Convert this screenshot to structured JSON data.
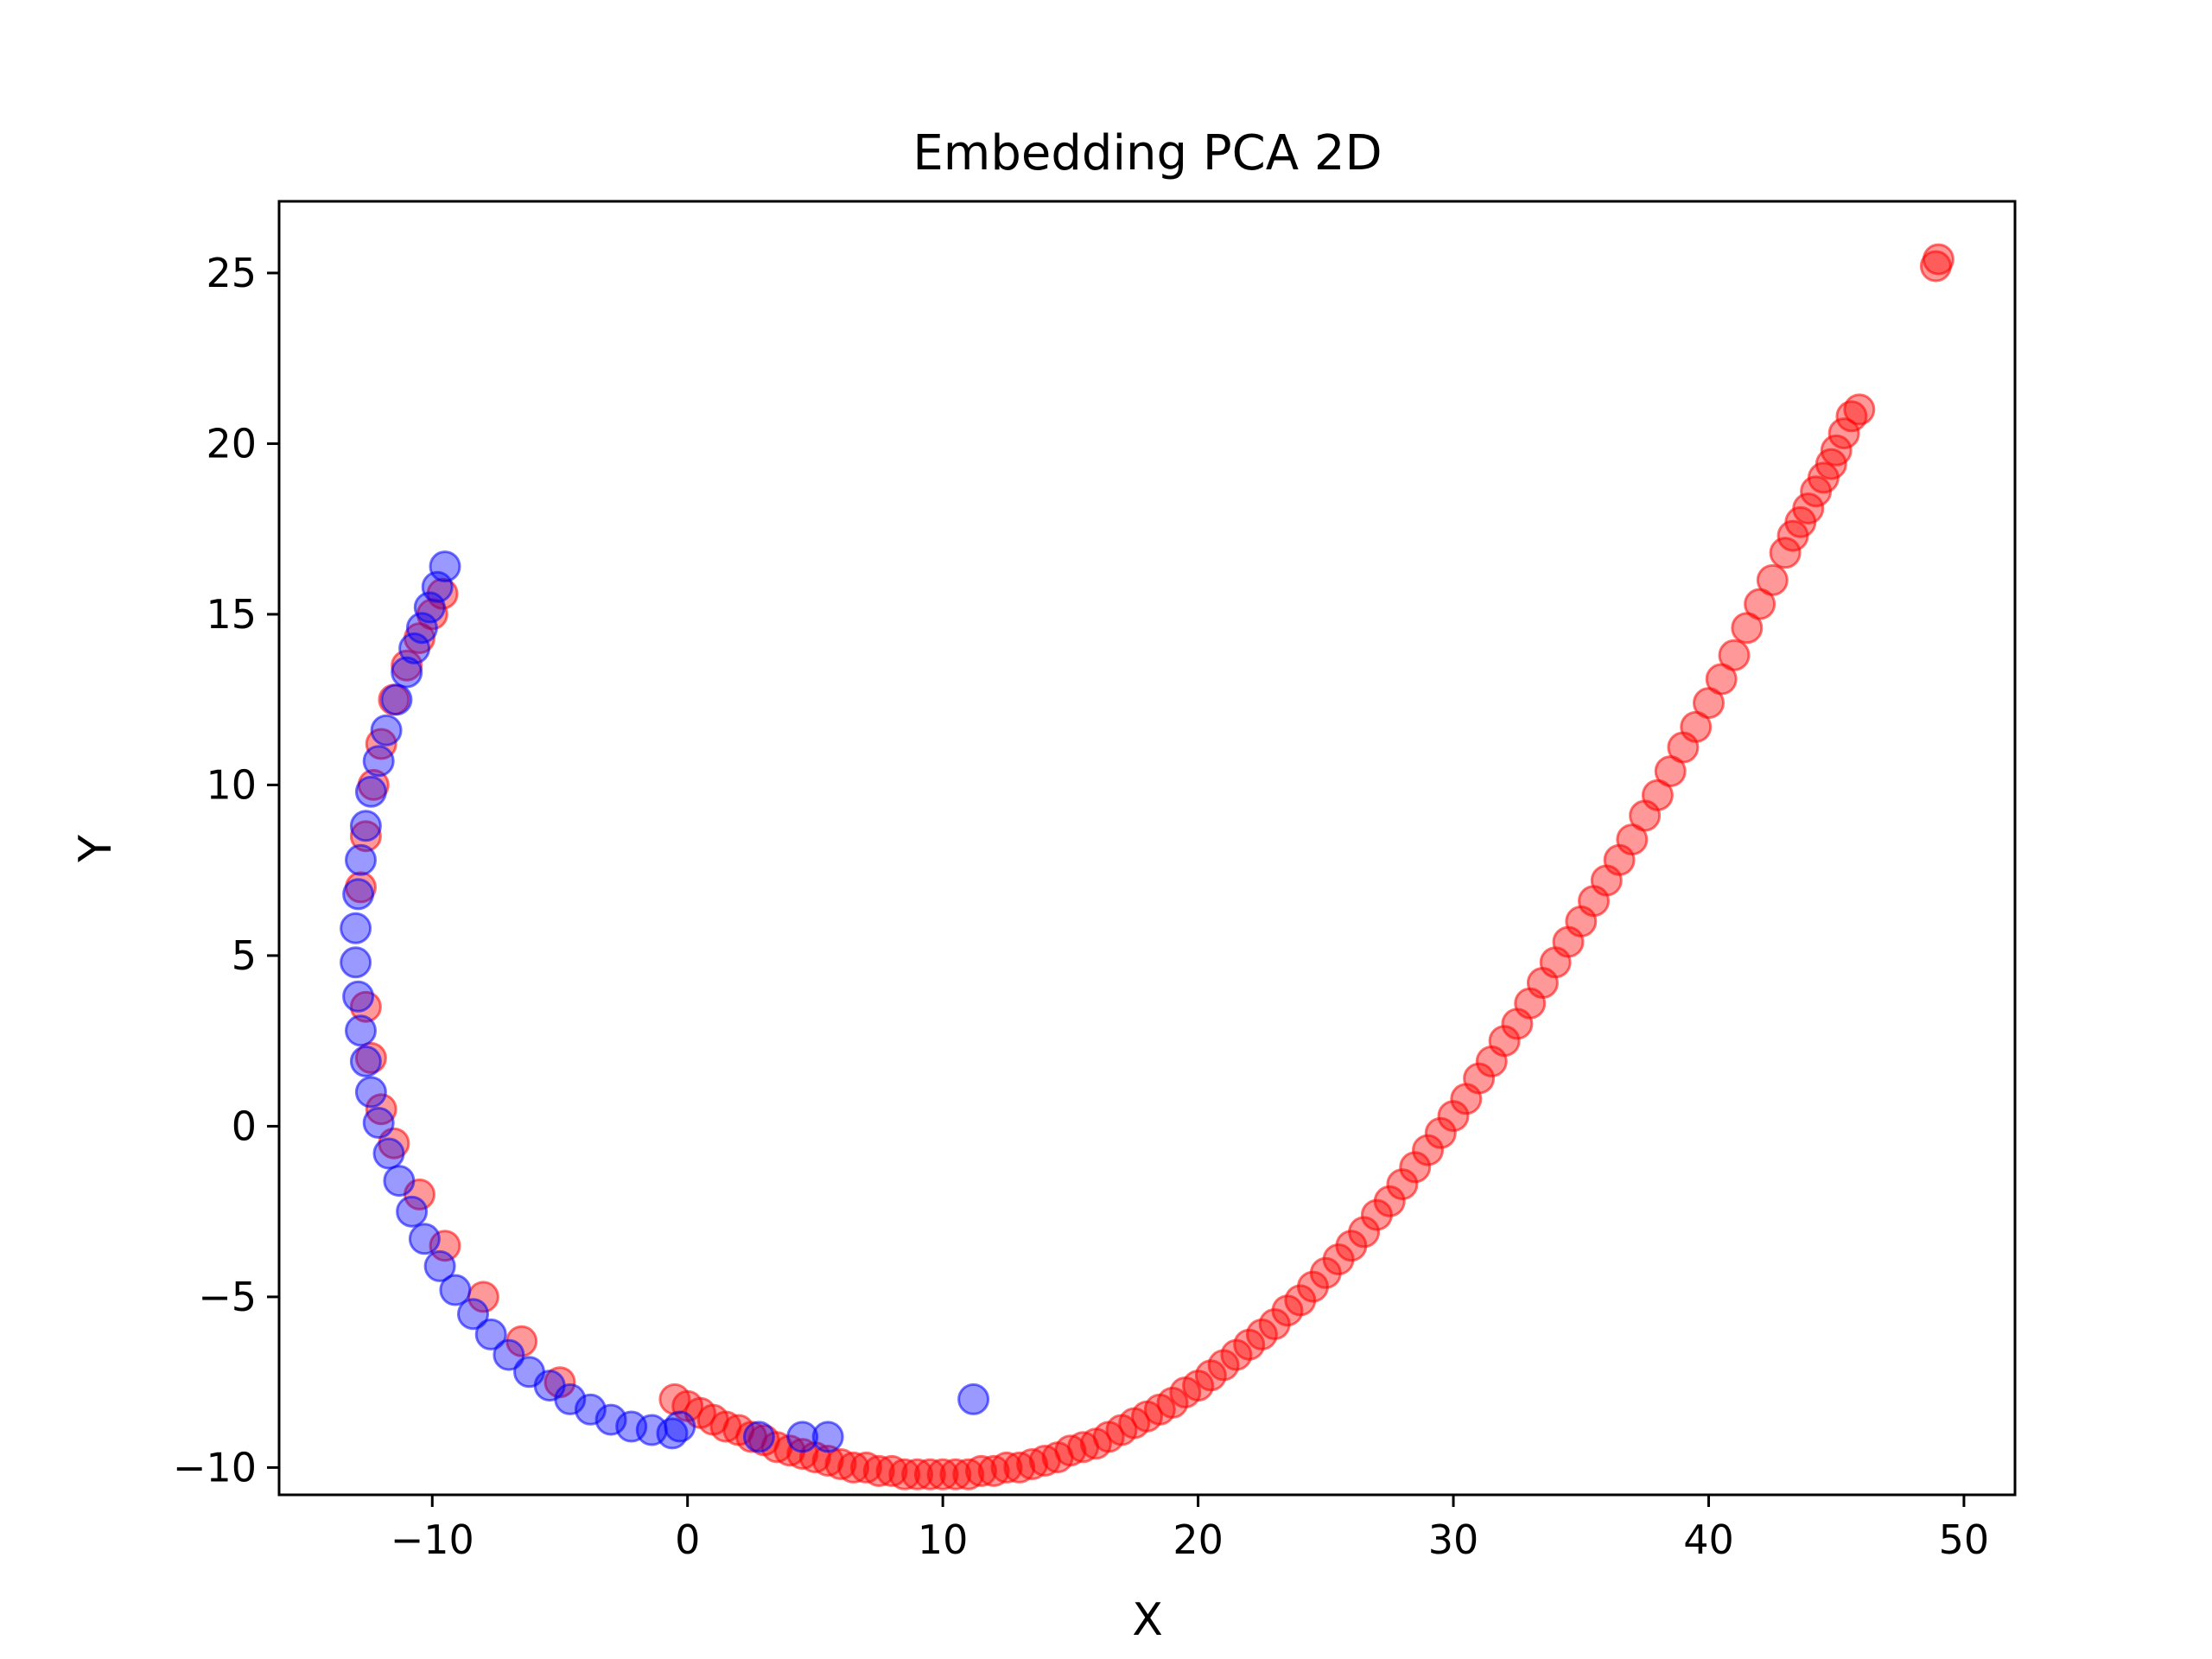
{
  "chart_data": {
    "type": "scatter",
    "title": "Embedding PCA 2D",
    "xlabel": "X",
    "ylabel": "Y",
    "xlim": [
      -16,
      52
    ],
    "ylim": [
      -10.8,
      27.1
    ],
    "xticks": [
      -10,
      0,
      10,
      20,
      30,
      40,
      50
    ],
    "yticks": [
      -10,
      -5,
      0,
      5,
      10,
      15,
      20,
      25
    ],
    "xtick_labels": [
      "−10",
      "0",
      "10",
      "20",
      "30",
      "40",
      "50"
    ],
    "ytick_labels": [
      "−10",
      "−5",
      "0",
      "5",
      "10",
      "15",
      "20",
      "25"
    ],
    "grid": false,
    "legend": "none",
    "marker_alpha": 0.4,
    "series": [
      {
        "color": "#ff0000",
        "points": [
          [
            49.0,
            25.4
          ],
          [
            48.9,
            25.2
          ],
          [
            45.9,
            21.0
          ],
          [
            45.6,
            20.8
          ],
          [
            45.3,
            20.3
          ],
          [
            45.0,
            19.8
          ],
          [
            44.8,
            19.4
          ],
          [
            44.5,
            19.0
          ],
          [
            44.2,
            18.6
          ],
          [
            43.9,
            18.1
          ],
          [
            43.6,
            17.7
          ],
          [
            43.3,
            17.3
          ],
          [
            43.0,
            16.8
          ],
          [
            42.5,
            16.0
          ],
          [
            42.0,
            15.3
          ],
          [
            41.5,
            14.6
          ],
          [
            41.0,
            13.8
          ],
          [
            40.5,
            13.1
          ],
          [
            40.0,
            12.4
          ],
          [
            39.5,
            11.7
          ],
          [
            39.0,
            11.1
          ],
          [
            38.5,
            10.4
          ],
          [
            38.0,
            9.7
          ],
          [
            37.5,
            9.1
          ],
          [
            37.0,
            8.4
          ],
          [
            36.5,
            7.8
          ],
          [
            36.0,
            7.2
          ],
          [
            35.5,
            6.6
          ],
          [
            35.0,
            6.0
          ],
          [
            34.5,
            5.4
          ],
          [
            34.0,
            4.8
          ],
          [
            33.5,
            4.2
          ],
          [
            33.0,
            3.6
          ],
          [
            32.5,
            3.0
          ],
          [
            32.0,
            2.5
          ],
          [
            31.5,
            1.9
          ],
          [
            31.0,
            1.4
          ],
          [
            30.5,
            0.8
          ],
          [
            30.0,
            0.3
          ],
          [
            29.5,
            -0.2
          ],
          [
            29.0,
            -0.7
          ],
          [
            28.5,
            -1.2
          ],
          [
            28.0,
            -1.7
          ],
          [
            27.5,
            -2.2
          ],
          [
            27.0,
            -2.6
          ],
          [
            26.5,
            -3.1
          ],
          [
            26.0,
            -3.5
          ],
          [
            25.5,
            -3.9
          ],
          [
            25.0,
            -4.3
          ],
          [
            24.5,
            -4.7
          ],
          [
            24.0,
            -5.1
          ],
          [
            23.5,
            -5.4
          ],
          [
            23.0,
            -5.8
          ],
          [
            22.5,
            -6.1
          ],
          [
            22.0,
            -6.4
          ],
          [
            21.5,
            -6.7
          ],
          [
            21.0,
            -7.0
          ],
          [
            20.5,
            -7.3
          ],
          [
            20.0,
            -7.6
          ],
          [
            19.5,
            -7.8
          ],
          [
            19.0,
            -8.1
          ],
          [
            18.5,
            -8.3
          ],
          [
            18.0,
            -8.5
          ],
          [
            17.5,
            -8.7
          ],
          [
            17.0,
            -8.9
          ],
          [
            16.5,
            -9.1
          ],
          [
            16.0,
            -9.3
          ],
          [
            15.5,
            -9.4
          ],
          [
            15.0,
            -9.5
          ],
          [
            14.5,
            -9.7
          ],
          [
            14.0,
            -9.8
          ],
          [
            13.5,
            -9.9
          ],
          [
            13.0,
            -10.0
          ],
          [
            12.5,
            -10.0
          ],
          [
            12.0,
            -10.1
          ],
          [
            11.5,
            -10.1
          ],
          [
            11.0,
            -10.2
          ],
          [
            10.5,
            -10.2
          ],
          [
            10.0,
            -10.2
          ],
          [
            9.5,
            -10.2
          ],
          [
            9.0,
            -10.2
          ],
          [
            8.5,
            -10.2
          ],
          [
            8.0,
            -10.1
          ],
          [
            7.5,
            -10.1
          ],
          [
            7.0,
            -10.0
          ],
          [
            6.5,
            -10.0
          ],
          [
            6.0,
            -9.9
          ],
          [
            5.5,
            -9.8
          ],
          [
            5.0,
            -9.7
          ],
          [
            4.5,
            -9.6
          ],
          [
            4.0,
            -9.5
          ],
          [
            3.5,
            -9.4
          ],
          [
            3.0,
            -9.2
          ],
          [
            2.5,
            -9.1
          ],
          [
            2.0,
            -8.9
          ],
          [
            1.5,
            -8.8
          ],
          [
            1.0,
            -8.6
          ],
          [
            0.5,
            -8.4
          ],
          [
            0.0,
            -8.2
          ],
          [
            -0.5,
            -8.0
          ],
          [
            -5.0,
            -7.5
          ],
          [
            -6.5,
            -6.3
          ],
          [
            -8.0,
            -5.0
          ],
          [
            -9.5,
            -3.5
          ],
          [
            -10.5,
            -2.0
          ],
          [
            -11.5,
            -0.5
          ],
          [
            -12.0,
            0.5
          ],
          [
            -12.4,
            2.0
          ],
          [
            -12.6,
            3.5
          ],
          [
            -12.8,
            7.0
          ],
          [
            -12.6,
            8.5
          ],
          [
            -12.3,
            10.0
          ],
          [
            -12.0,
            11.2
          ],
          [
            -11.5,
            12.5
          ],
          [
            -11.0,
            13.5
          ],
          [
            -10.5,
            14.3
          ],
          [
            -10.0,
            15.0
          ],
          [
            -9.6,
            15.6
          ]
        ]
      },
      {
        "color": "#0000ff",
        "points": [
          [
            -9.5,
            16.4
          ],
          [
            -9.8,
            15.8
          ],
          [
            -10.1,
            15.2
          ],
          [
            -10.4,
            14.6
          ],
          [
            -10.7,
            14.0
          ],
          [
            -11.0,
            13.3
          ],
          [
            -11.4,
            12.5
          ],
          [
            -11.8,
            11.6
          ],
          [
            -12.1,
            10.7
          ],
          [
            -12.4,
            9.8
          ],
          [
            -12.6,
            8.8
          ],
          [
            -12.8,
            7.8
          ],
          [
            -12.9,
            6.8
          ],
          [
            -13.0,
            5.8
          ],
          [
            -13.0,
            4.8
          ],
          [
            -12.9,
            3.8
          ],
          [
            -12.8,
            2.8
          ],
          [
            -12.6,
            1.9
          ],
          [
            -12.4,
            1.0
          ],
          [
            -12.1,
            0.1
          ],
          [
            -11.7,
            -0.8
          ],
          [
            -11.3,
            -1.6
          ],
          [
            -10.8,
            -2.5
          ],
          [
            -10.3,
            -3.3
          ],
          [
            -9.7,
            -4.1
          ],
          [
            -9.1,
            -4.8
          ],
          [
            -8.4,
            -5.5
          ],
          [
            -7.7,
            -6.1
          ],
          [
            -7.0,
            -6.7
          ],
          [
            -6.2,
            -7.2
          ],
          [
            -5.4,
            -7.6
          ],
          [
            -4.6,
            -8.0
          ],
          [
            -3.8,
            -8.3
          ],
          [
            -3.0,
            -8.6
          ],
          [
            -2.2,
            -8.8
          ],
          [
            -1.4,
            -8.9
          ],
          [
            -0.6,
            -9.0
          ],
          [
            -0.3,
            -8.8
          ],
          [
            2.8,
            -9.1
          ],
          [
            4.5,
            -9.1
          ],
          [
            5.5,
            -9.1
          ],
          [
            11.2,
            -8.0
          ]
        ]
      }
    ]
  }
}
